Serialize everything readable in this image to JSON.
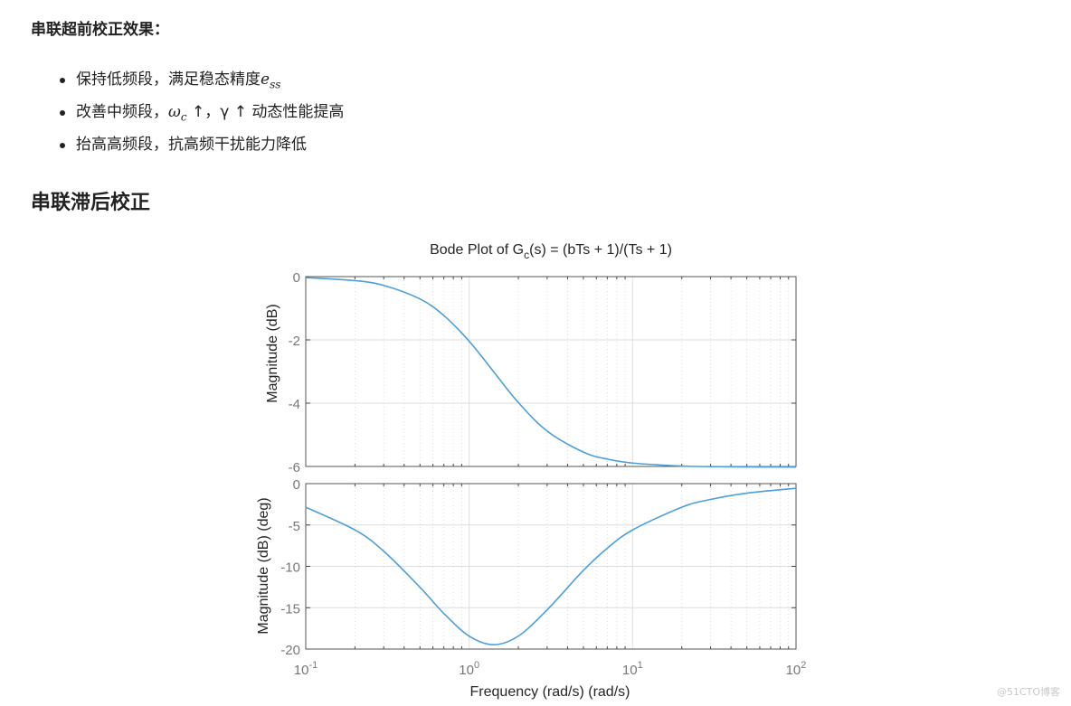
{
  "section_heading": "串联超前校正效果：",
  "bullets": [
    {
      "text": "保持低频段，满足稳态精度",
      "math": "e",
      "math_sub": "ss",
      "tail": ""
    },
    {
      "text": "改善中频段，",
      "math": "ω",
      "math_sub": "c",
      "tail": " ↑，γ ↑ 动态性能提高"
    },
    {
      "text": "抬高高频段，抗高频干扰能力降低",
      "math": "",
      "math_sub": "",
      "tail": ""
    }
  ],
  "subheading": "串联滞后校正",
  "watermark": "@51CTO博客",
  "chart_data": [
    {
      "type": "line",
      "title": "Bode Plot of G_c(s) = (bTs + 1)/(Ts + 1)",
      "title_parts": {
        "pre": "Bode Plot of G",
        "sub": "c",
        "post": "(s) = (bTs + 1)/(Ts + 1)"
      },
      "ylabel": "Magnitude (dB)",
      "xscale": "log",
      "xlim": [
        0.1,
        100
      ],
      "ylim": [
        -6,
        0
      ],
      "yticks": [
        0,
        -2,
        -4,
        -6
      ],
      "grid": true,
      "color": "#4a9fdc",
      "x": [
        0.1,
        0.2,
        0.3,
        0.5,
        0.7,
        1,
        1.414,
        2,
        3,
        5,
        7,
        10,
        20,
        30,
        50,
        100
      ],
      "y": [
        -0.032,
        -0.127,
        -0.278,
        -0.706,
        -1.23,
        -2.041,
        -3.01,
        -3.979,
        -4.881,
        -5.547,
        -5.768,
        -5.893,
        -5.988,
        -6.006,
        -6.015,
        -6.019
      ]
    },
    {
      "type": "line",
      "ylabel": "Magnitude (dB) (deg)",
      "xlabel": "Frequency (rad/s)  (rad/s)",
      "xscale": "log",
      "xlim": [
        0.1,
        100
      ],
      "xticks": [
        {
          "base": "10",
          "exp": "-1"
        },
        {
          "base": "10",
          "exp": "0"
        },
        {
          "base": "10",
          "exp": "1"
        },
        {
          "base": "10",
          "exp": "2"
        }
      ],
      "ylim": [
        -20,
        0
      ],
      "yticks": [
        0,
        -5,
        -10,
        -15,
        -20
      ],
      "grid": true,
      "color": "#4a9fdc",
      "x": [
        0.1,
        0.2,
        0.3,
        0.5,
        0.7,
        1,
        1.414,
        2,
        3,
        5,
        7,
        10,
        20,
        30,
        50,
        100
      ],
      "y": [
        -2.85,
        -5.6,
        -8.17,
        -12.53,
        -15.7,
        -18.43,
        -19.47,
        -18.43,
        -15.26,
        -10.49,
        -7.81,
        -5.6,
        -2.85,
        -1.91,
        -1.15,
        -0.57
      ]
    }
  ]
}
